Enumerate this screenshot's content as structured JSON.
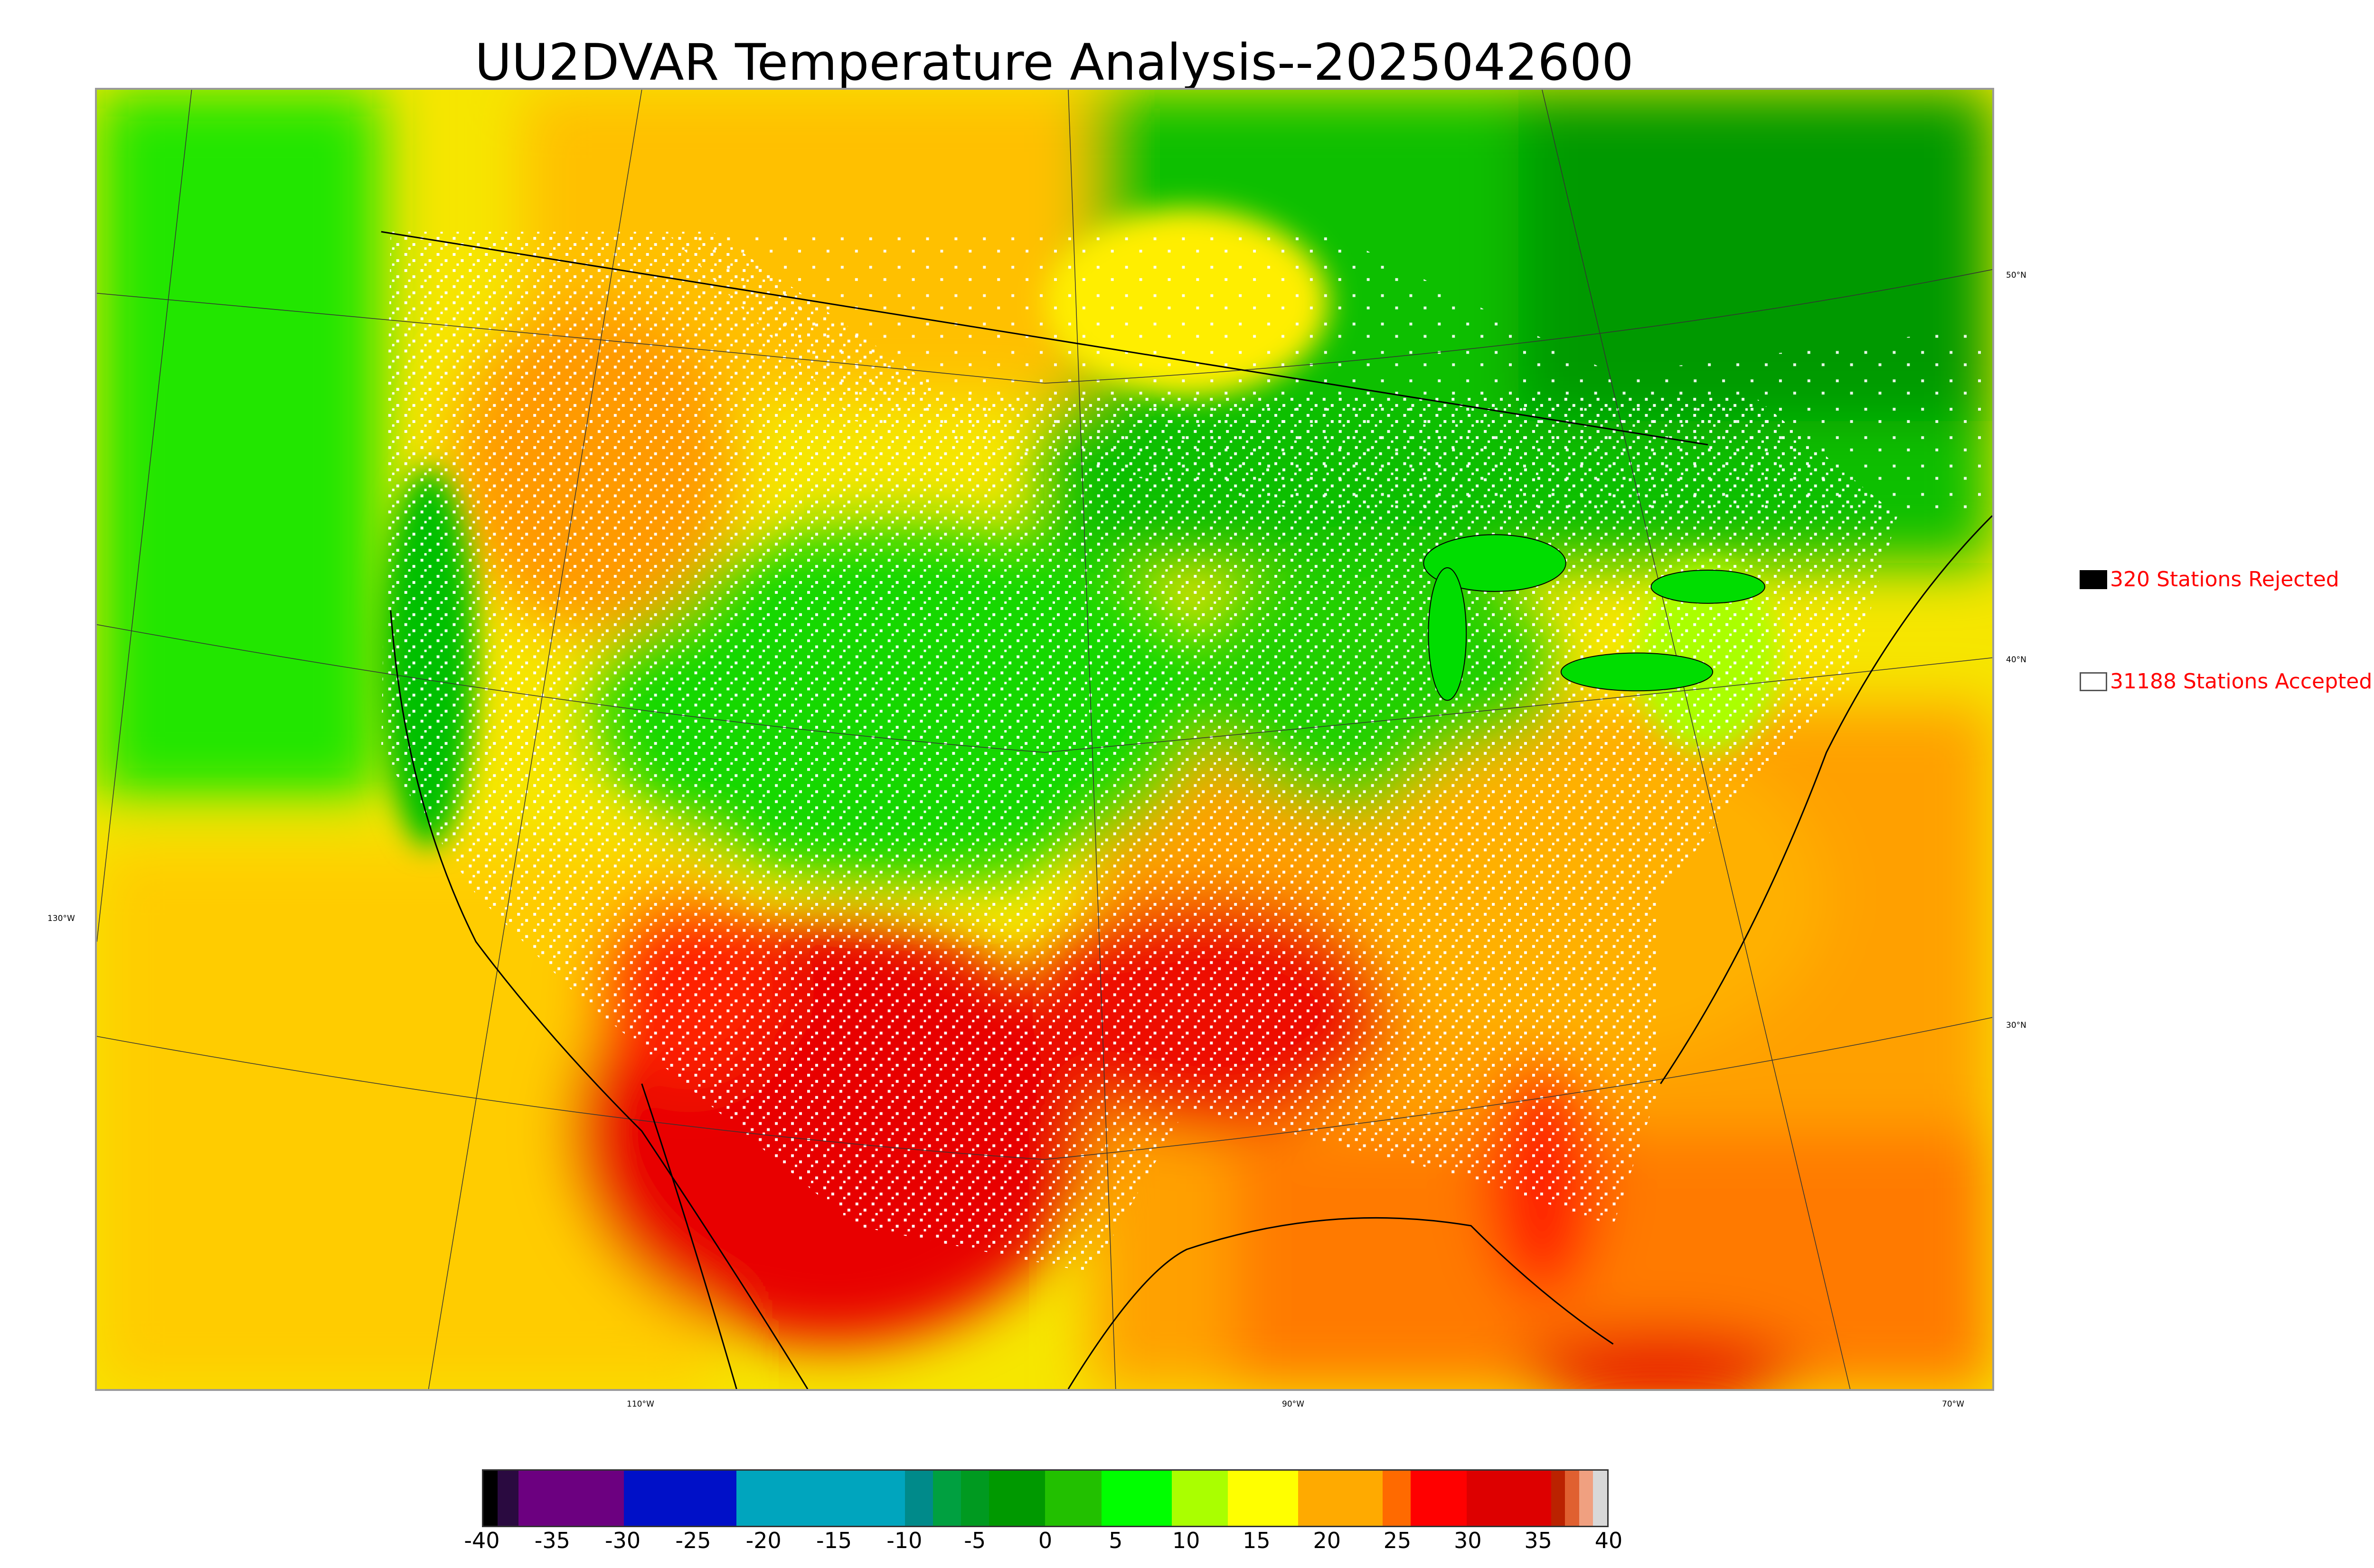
{
  "title": "UU2DVAR Temperature Analysis--2025042600",
  "legend": {
    "rejected_label": "320 Stations Rejected",
    "accepted_label": "31188 Stations Accepted",
    "rejected_color": "#000000",
    "accepted_color": "#ffffff"
  },
  "graticule": {
    "lat_labels": [
      "50°N",
      "40°N",
      "30°N"
    ],
    "lon_labels": [
      "130°W",
      "110°W",
      "90°W",
      "70°W"
    ]
  },
  "colorbar": {
    "ticks": [
      "-40",
      "-35",
      "-30",
      "-25",
      "-20",
      "-15",
      "-10",
      "-5",
      "0",
      "5",
      "10",
      "15",
      "20",
      "25",
      "30",
      "35",
      "40"
    ],
    "range": [
      -40,
      40
    ],
    "segments": [
      {
        "from": -40,
        "to": -39,
        "color": "#000000"
      },
      {
        "from": -39,
        "to": -37.5,
        "color": "#2a0a40"
      },
      {
        "from": -37.5,
        "to": -30,
        "color": "#6c0080"
      },
      {
        "from": -30,
        "to": -22,
        "color": "#0010c8"
      },
      {
        "from": -22,
        "to": -10,
        "color": "#00a5be"
      },
      {
        "from": -10,
        "to": -8,
        "color": "#008a8a"
      },
      {
        "from": -8,
        "to": -6,
        "color": "#00a040"
      },
      {
        "from": -6,
        "to": -4,
        "color": "#009a20"
      },
      {
        "from": -4,
        "to": 0,
        "color": "#009900"
      },
      {
        "from": 0,
        "to": 4,
        "color": "#22c000"
      },
      {
        "from": 4,
        "to": 9,
        "color": "#00ff00"
      },
      {
        "from": 9,
        "to": 13,
        "color": "#aaff00"
      },
      {
        "from": 13,
        "to": 18,
        "color": "#ffff00"
      },
      {
        "from": 18,
        "to": 24,
        "color": "#ffaa00"
      },
      {
        "from": 24,
        "to": 26,
        "color": "#ff6a00"
      },
      {
        "from": 26,
        "to": 30,
        "color": "#ff0000"
      },
      {
        "from": 30,
        "to": 36,
        "color": "#dd0000"
      },
      {
        "from": 36,
        "to": 37,
        "color": "#bb2200"
      },
      {
        "from": 37,
        "to": 38,
        "color": "#e06030"
      },
      {
        "from": 38,
        "to": 39,
        "color": "#f0a080"
      },
      {
        "from": 39,
        "to": 40,
        "color": "#d8d8d8"
      }
    ]
  },
  "colors": {
    "green_dark": "#009900",
    "green": "#00ff00",
    "yellow_green": "#aaff00",
    "yellow": "#ffff00",
    "orange": "#ffaa00",
    "red": "#ff0000",
    "dark_red": "#dd0000"
  }
}
